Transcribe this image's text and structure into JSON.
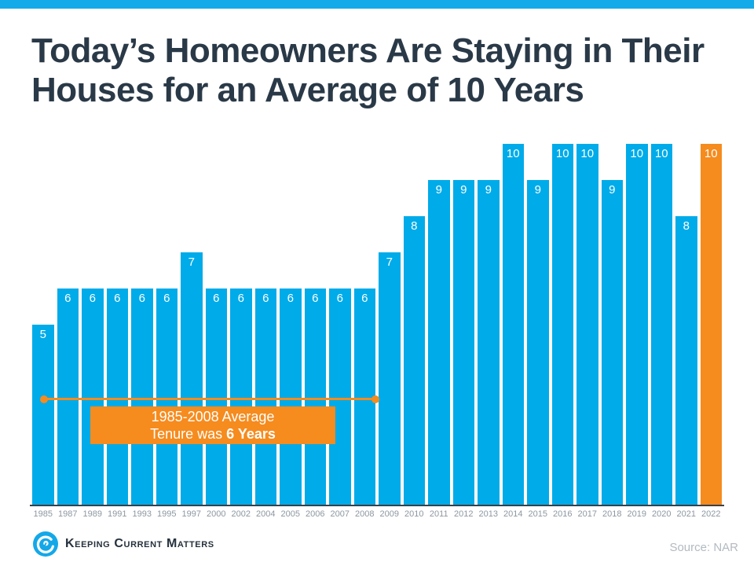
{
  "page": {
    "top_strip_color": "#14aae9",
    "background_color": "#ffffff"
  },
  "title": "Today’s Homeowners Are Staying in Their Houses for an Average of 10 Years",
  "chart_data": {
    "type": "bar",
    "title": "Average homeowner tenure in years by year",
    "categories": [
      "1985",
      "1987",
      "1989",
      "1991",
      "1993",
      "1995",
      "1997",
      "2000",
      "2002",
      "2004",
      "2005",
      "2006",
      "2007",
      "2008",
      "2009",
      "2010",
      "2011",
      "2012",
      "2013",
      "2014",
      "2015",
      "2016",
      "2017",
      "2018",
      "2019",
      "2020",
      "2021",
      "2022"
    ],
    "values": [
      5,
      6,
      6,
      6,
      6,
      6,
      7,
      6,
      6,
      6,
      6,
      6,
      6,
      6,
      7,
      8,
      9,
      9,
      9,
      10,
      9,
      10,
      10,
      9,
      10,
      10,
      8,
      10
    ],
    "xlabel": "",
    "ylabel": "",
    "ylim": [
      0,
      10
    ],
    "grid": false,
    "legend": false,
    "bar_color": "#00abe9",
    "highlight_color": "#f68b1e",
    "highlight_category": "2022",
    "highlight_index": 27,
    "value_label_color": "#ffffff",
    "annotation": {
      "span_start": "1985",
      "span_end": "2008",
      "line1": "1985-2008 Average",
      "line2_prefix": "Tenure was ",
      "line2_bold": "6 Years",
      "color": "#f68b1e"
    }
  },
  "footer": {
    "logo_text": "Keeping Current Matters",
    "source": "Source: NAR"
  }
}
